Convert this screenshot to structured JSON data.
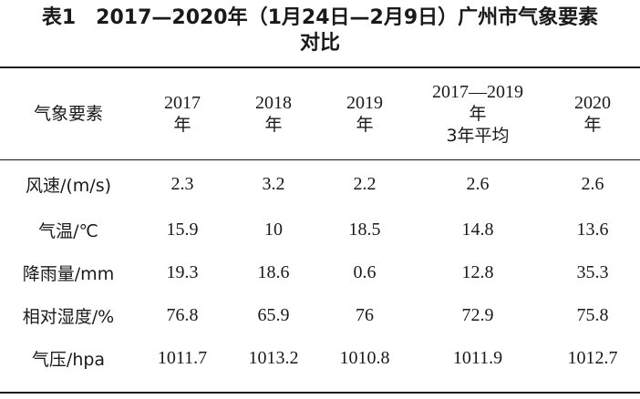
{
  "caption": {
    "line1": "表1　2017—2020年（1月24日—2月9日）广州市气象要素",
    "line2": "对比"
  },
  "table": {
    "corner_header": "气象要素",
    "columns": [
      {
        "line1": "2017",
        "line2": "年",
        "line3": ""
      },
      {
        "line1": "2018",
        "line2": "年",
        "line3": ""
      },
      {
        "line1": "2019",
        "line2": "年",
        "line3": ""
      },
      {
        "line1": "2017—2019",
        "line2": "年",
        "line3": "3年平均"
      },
      {
        "line1": "2020",
        "line2": "年",
        "line3": ""
      }
    ],
    "rows": [
      {
        "label": "风速/(m/s)",
        "values": [
          "2.3",
          "3.2",
          "2.2",
          "2.6",
          "2.6"
        ]
      },
      {
        "label": "气温/℃",
        "values": [
          "15.9",
          "10",
          "18.5",
          "14.8",
          "13.6"
        ]
      },
      {
        "label": "降雨量/mm",
        "values": [
          "19.3",
          "18.6",
          "0.6",
          "12.8",
          "35.3"
        ]
      },
      {
        "label": "相对湿度/%",
        "values": [
          "76.8",
          "65.9",
          "76",
          "72.9",
          "75.8"
        ]
      },
      {
        "label": "气压/hpa",
        "values": [
          "1011.7",
          "1013.2",
          "1010.8",
          "1011.9",
          "1012.7"
        ]
      }
    ]
  }
}
